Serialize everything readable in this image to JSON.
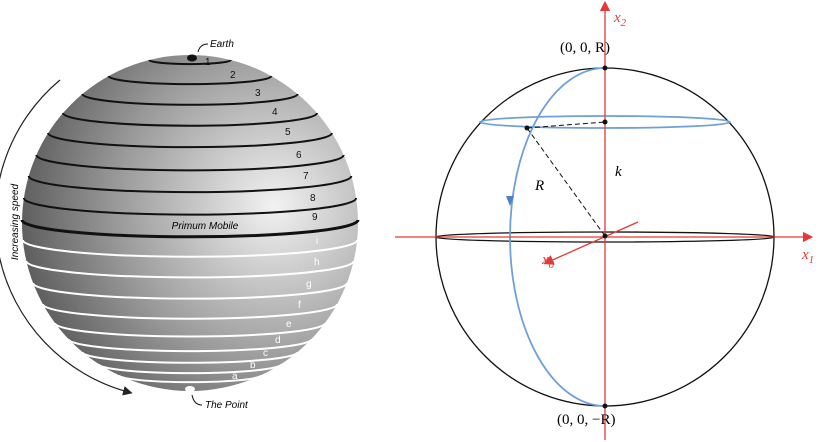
{
  "left": {
    "earth": "Earth",
    "point": "The Point",
    "primum_mobile": "Primum Mobile",
    "increasing_speed": "Increasing speed",
    "shells": [
      "1",
      "2",
      "3",
      "4",
      "5",
      "6",
      "7",
      "8",
      "9"
    ],
    "lower_shells": [
      "i",
      "h",
      "g",
      "f",
      "e",
      "d",
      "c",
      "b",
      "a"
    ]
  },
  "right": {
    "top_point": "(0, 0, R)",
    "bottom_point": "(0, 0, −R)",
    "radius": "R",
    "height": "k",
    "x2": {
      "var": "x",
      "sub": "2"
    },
    "x1": {
      "var": "x",
      "sub": "1"
    },
    "x0": {
      "var": "x",
      "sub": "0"
    }
  }
}
